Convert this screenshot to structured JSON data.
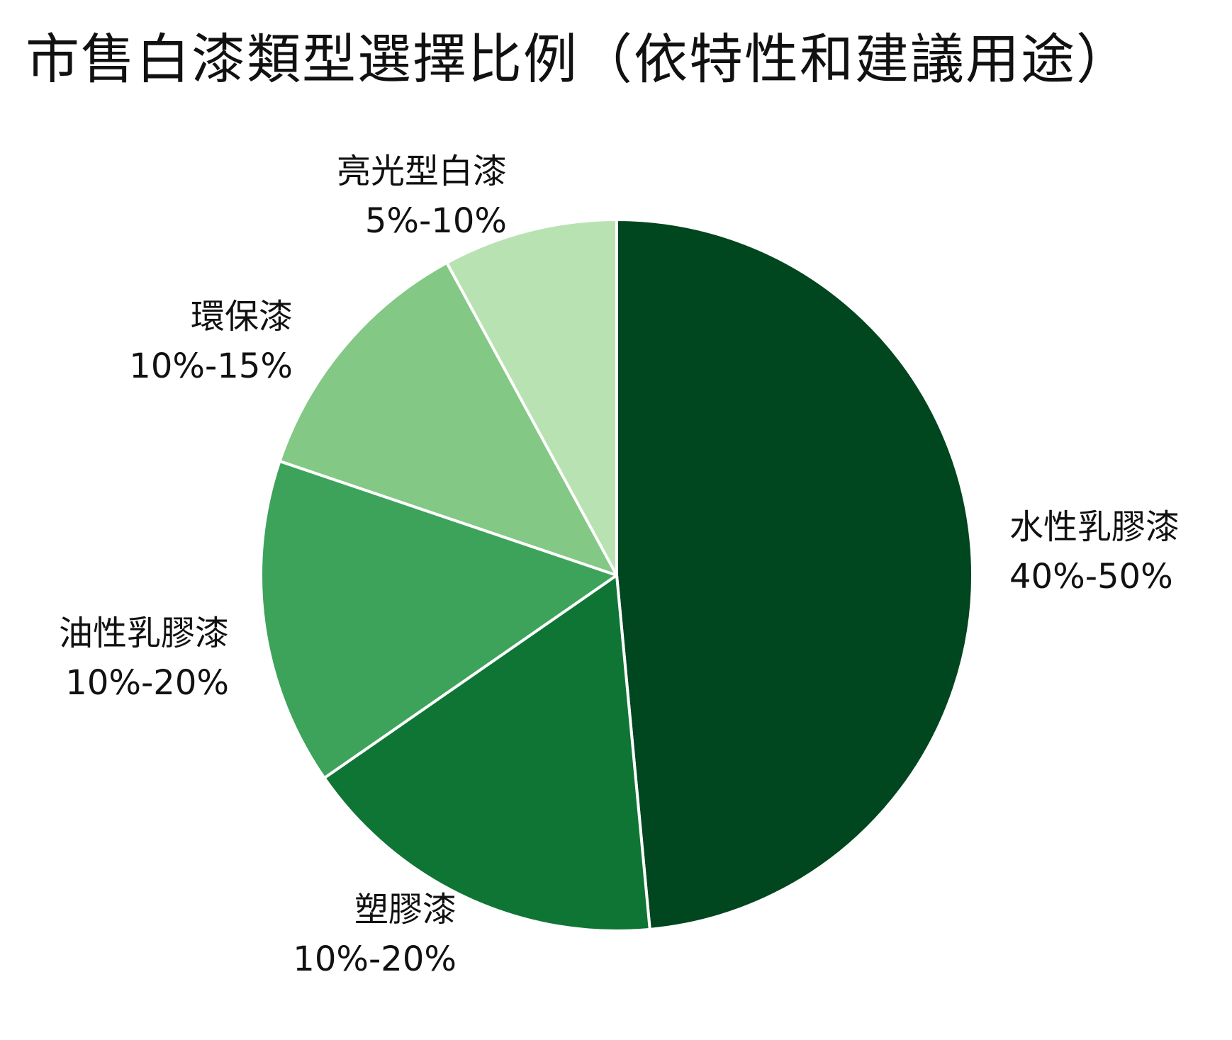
{
  "chart_data": {
    "type": "pie",
    "title": "市售白漆類型選擇比例（依特性和建議用途）",
    "slices": [
      {
        "name": "水性乳膠漆",
        "range_label": "40%-50%",
        "value": 49,
        "color": "#00461e"
      },
      {
        "name": "塑膠漆",
        "range_label": "10%-20%",
        "value": 17,
        "color": "#0f7535"
      },
      {
        "name": "油性乳膠漆",
        "range_label": "10%-20%",
        "value": 15,
        "color": "#3da35a"
      },
      {
        "name": "環保漆",
        "range_label": "10%-15%",
        "value": 12,
        "color": "#83c884"
      },
      {
        "name": "亮光型白漆",
        "range_label": "5%-10%",
        "value": 8,
        "color": "#b9e2b3"
      }
    ],
    "start_angle": "12 o'clock",
    "direction": "clockwise",
    "legend": "none",
    "slice_border_color": "#ffffff"
  }
}
